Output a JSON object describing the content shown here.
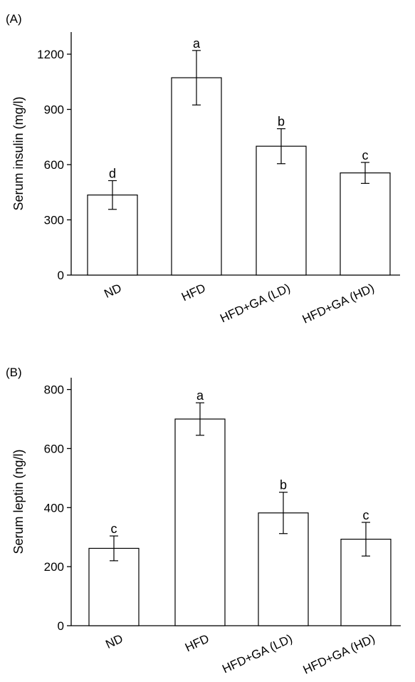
{
  "chart_data": [
    {
      "type": "bar",
      "panel_label": "(A)",
      "ylabel": "Serum insulin (mg/l)",
      "categories": [
        "ND",
        "HFD",
        "HFD+GA (LD)",
        "HFD+GA (HD)"
      ],
      "values": [
        435,
        1072,
        700,
        555
      ],
      "errors": [
        78,
        148,
        95,
        57
      ],
      "significance_labels": [
        "d",
        "a",
        "b",
        "c"
      ],
      "yticks": [
        0,
        300,
        600,
        900,
        1200
      ],
      "ylim": [
        0,
        1320
      ],
      "grid": false,
      "legend": "none"
    },
    {
      "type": "bar",
      "panel_label": "(B)",
      "ylabel": "Serum leptin (ng/l)",
      "categories": [
        "ND",
        "HFD",
        "HFD+GA (LD)",
        "HFD+GA (HD)"
      ],
      "values": [
        262,
        700,
        382,
        293
      ],
      "errors": [
        42,
        55,
        70,
        57
      ],
      "significance_labels": [
        "c",
        "a",
        "b",
        "c"
      ],
      "yticks": [
        0,
        200,
        400,
        600,
        800
      ],
      "ylim": [
        0,
        840
      ],
      "grid": false,
      "legend": "none"
    }
  ]
}
